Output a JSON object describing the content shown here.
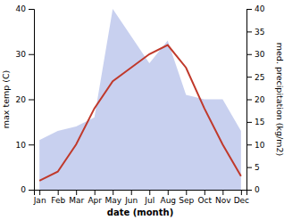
{
  "chart_data": {
    "type": "line",
    "categories": [
      "Jan",
      "Feb",
      "Mar",
      "Apr",
      "May",
      "Jun",
      "Jul",
      "Aug",
      "Sep",
      "Oct",
      "Nov",
      "Dec"
    ],
    "xlabel": "date (month)",
    "ylabel": "max temp (C)",
    "y2label": "med. precipitation (kg/m2)",
    "ylim": [
      0,
      40
    ],
    "yticks": [
      0,
      10,
      20,
      30,
      40
    ],
    "y2lim": [
      0,
      40
    ],
    "y2ticks": [
      0,
      5,
      10,
      15,
      20,
      25,
      30,
      35,
      40
    ],
    "grid": false,
    "series": [
      {
        "type": "area",
        "axis": "y2",
        "color": "#b0bce8",
        "values": [
          11,
          13,
          14,
          16,
          40,
          34,
          28,
          33,
          21,
          20,
          20,
          13
        ]
      },
      {
        "type": "line",
        "color": "#c0392b",
        "values": [
          2,
          4,
          10,
          18,
          24,
          27,
          30,
          32,
          27,
          18,
          10,
          3
        ]
      }
    ]
  }
}
